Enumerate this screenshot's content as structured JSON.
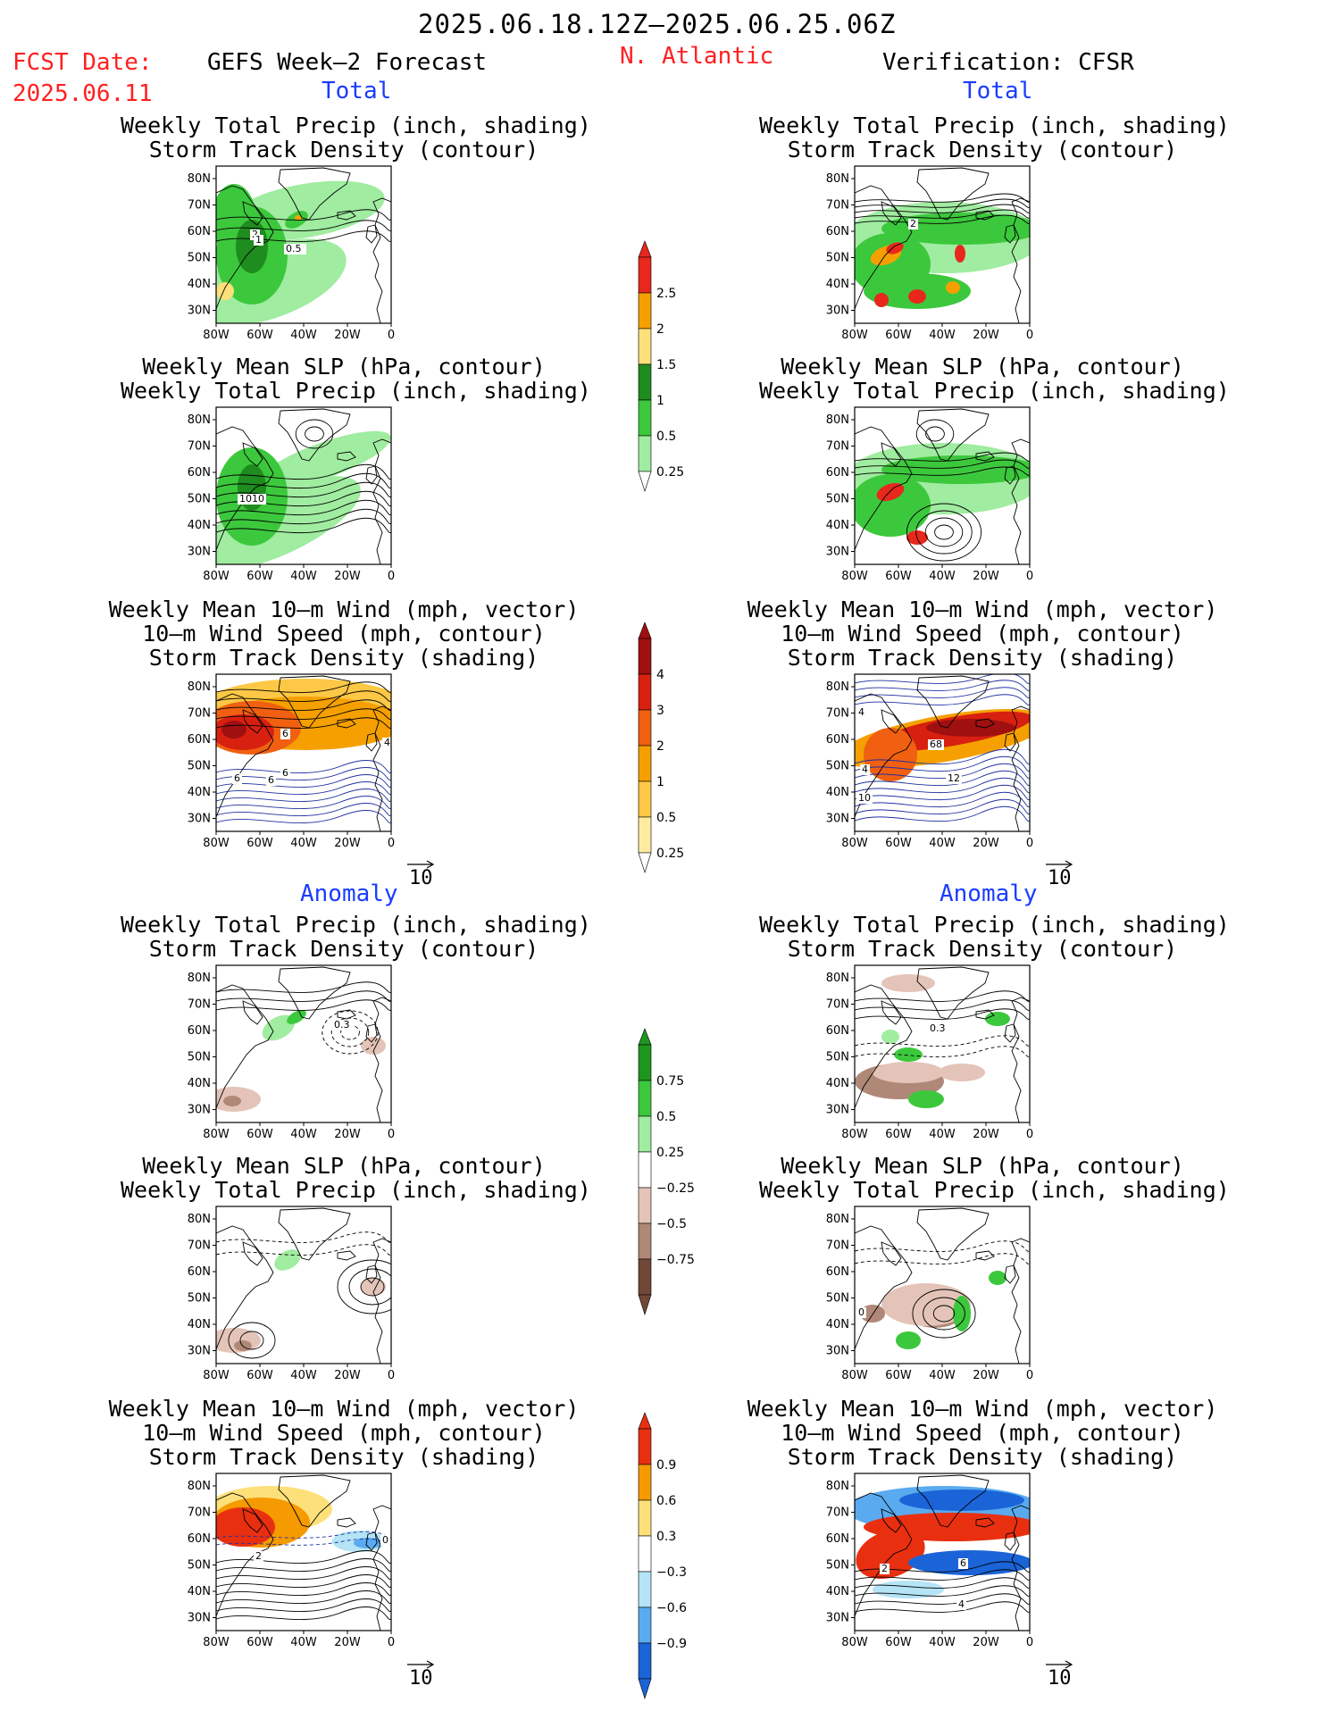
{
  "header": {
    "date_range": "2025.06.18.12Z—2025.06.25.06Z",
    "fcst_label": "FCST Date:",
    "fcst_date": "2025.06.11",
    "left_title": "GEFS Week—2 Forecast",
    "center_title": "N. Atlantic",
    "right_title": "Verification: CFSR"
  },
  "sections": {
    "total": "Total",
    "anomaly": "Anomaly"
  },
  "panel_titles": {
    "precip_track": [
      "Weekly Total Precip (inch, shading)",
      "Storm Track Density (contour)"
    ],
    "slp_precip": [
      "Weekly Mean SLP (hPa, contour)",
      "Weekly Total Precip (inch, shading)"
    ],
    "wind_track": [
      "Weekly Mean 10—m Wind (mph, vector)",
      "10—m Wind Speed (mph, contour)",
      "Storm Track Density (shading)"
    ]
  },
  "axes": {
    "lat_ticks": [
      "80N",
      "70N",
      "60N",
      "50N",
      "40N",
      "30N"
    ],
    "lon_ticks": [
      "80W",
      "60W",
      "40W",
      "20W",
      "0"
    ]
  },
  "vector_ref": "10",
  "contour_labels": {
    "p1": [
      "2",
      "1",
      "0.5"
    ],
    "p2": [
      "2"
    ],
    "p3": [
      "1010"
    ],
    "p5": [
      "6",
      "6",
      "4",
      "6",
      "6"
    ],
    "p6": [
      "4",
      "68",
      "4",
      "12",
      "10"
    ],
    "p7": [
      "0.3"
    ],
    "p8": [
      "0.3"
    ],
    "p10": [
      "0"
    ],
    "p11": [
      "2",
      "0"
    ],
    "p12": [
      "2",
      "6",
      "4"
    ]
  },
  "colorbars": {
    "precip": {
      "labels": [
        "2.5",
        "2",
        "1.5",
        "1",
        "0.5",
        "0.25"
      ],
      "colors": [
        "#e8281c",
        "#f5a000",
        "#fde07a",
        "#1e8c1e",
        "#3cc83c",
        "#a0eca0"
      ]
    },
    "track": {
      "labels": [
        "4",
        "3",
        "2",
        "1",
        "0.5",
        "0.25"
      ],
      "colors": [
        "#a01010",
        "#d82010",
        "#f06010",
        "#f5a000",
        "#fcc845",
        "#fdeca0"
      ]
    },
    "precip_anom": {
      "labels": [
        "0.75",
        "0.5",
        "0.25",
        "−0.25",
        "−0.5",
        "−0.75"
      ],
      "colors": [
        "#1e961e",
        "#3cc83c",
        "#a0eca0",
        "#ffffff",
        "#e4c4b8",
        "#b08878",
        "#704838"
      ]
    },
    "track_anom": {
      "labels": [
        "0.9",
        "0.6",
        "0.3",
        "−0.3",
        "−0.6",
        "−0.9"
      ],
      "colors": [
        "#e83010",
        "#f59a00",
        "#fde07a",
        "#ffffff",
        "#b4e4f5",
        "#5aaaf0",
        "#1a64d8"
      ]
    }
  }
}
